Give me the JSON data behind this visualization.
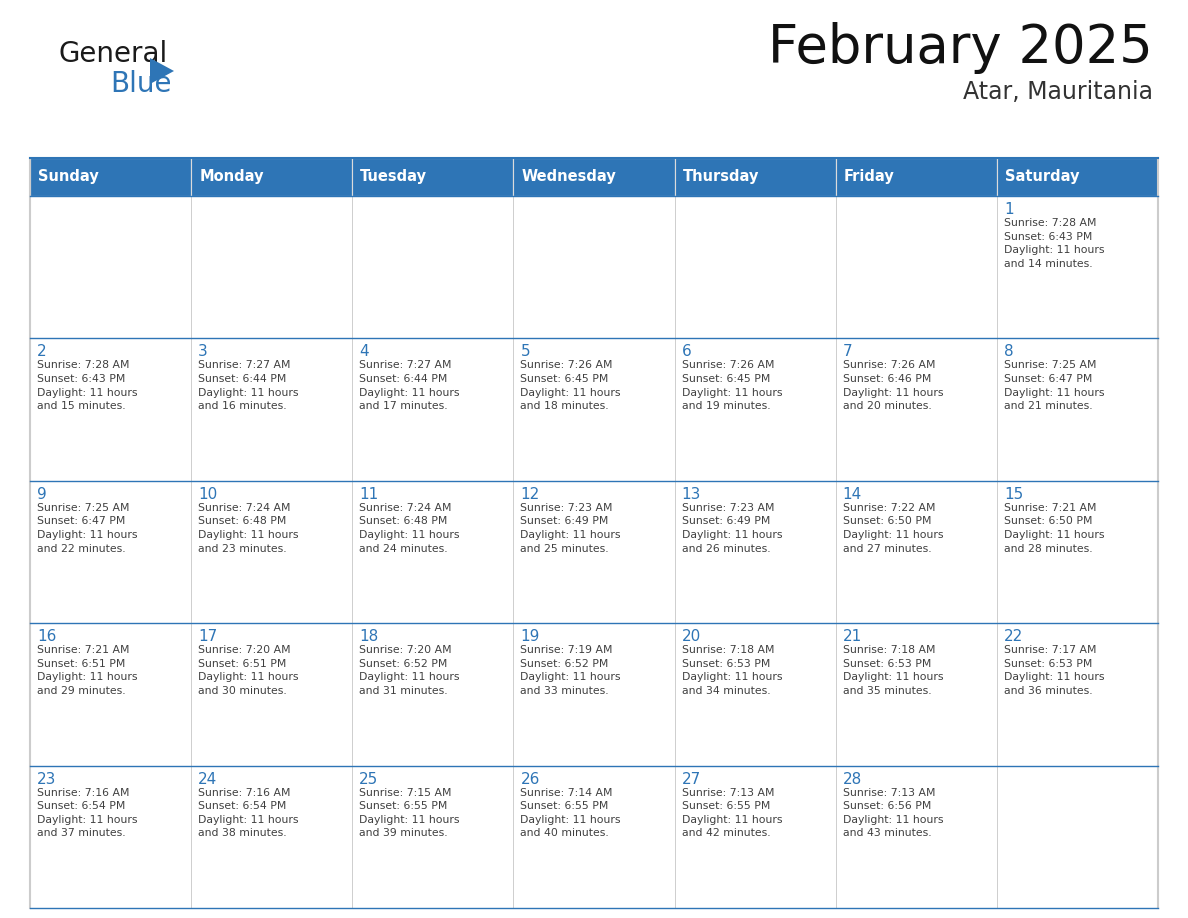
{
  "title": "February 2025",
  "subtitle": "Atar, Mauritania",
  "days_of_week": [
    "Sunday",
    "Monday",
    "Tuesday",
    "Wednesday",
    "Thursday",
    "Friday",
    "Saturday"
  ],
  "header_bg": "#2E75B6",
  "header_text": "#FFFFFF",
  "cell_border_blue": "#2E75B6",
  "cell_border_light": "#CCCCCC",
  "day_num_color": "#2E75B6",
  "info_text_color": "#404040",
  "logo_general_color": "#1a1a1a",
  "logo_blue_color": "#2E75B6",
  "fig_width": 11.88,
  "fig_height": 9.18,
  "dpi": 100,
  "weeks": [
    [
      {
        "day": null,
        "info": ""
      },
      {
        "day": null,
        "info": ""
      },
      {
        "day": null,
        "info": ""
      },
      {
        "day": null,
        "info": ""
      },
      {
        "day": null,
        "info": ""
      },
      {
        "day": null,
        "info": ""
      },
      {
        "day": 1,
        "info": "Sunrise: 7:28 AM\nSunset: 6:43 PM\nDaylight: 11 hours\nand 14 minutes."
      }
    ],
    [
      {
        "day": 2,
        "info": "Sunrise: 7:28 AM\nSunset: 6:43 PM\nDaylight: 11 hours\nand 15 minutes."
      },
      {
        "day": 3,
        "info": "Sunrise: 7:27 AM\nSunset: 6:44 PM\nDaylight: 11 hours\nand 16 minutes."
      },
      {
        "day": 4,
        "info": "Sunrise: 7:27 AM\nSunset: 6:44 PM\nDaylight: 11 hours\nand 17 minutes."
      },
      {
        "day": 5,
        "info": "Sunrise: 7:26 AM\nSunset: 6:45 PM\nDaylight: 11 hours\nand 18 minutes."
      },
      {
        "day": 6,
        "info": "Sunrise: 7:26 AM\nSunset: 6:45 PM\nDaylight: 11 hours\nand 19 minutes."
      },
      {
        "day": 7,
        "info": "Sunrise: 7:26 AM\nSunset: 6:46 PM\nDaylight: 11 hours\nand 20 minutes."
      },
      {
        "day": 8,
        "info": "Sunrise: 7:25 AM\nSunset: 6:47 PM\nDaylight: 11 hours\nand 21 minutes."
      }
    ],
    [
      {
        "day": 9,
        "info": "Sunrise: 7:25 AM\nSunset: 6:47 PM\nDaylight: 11 hours\nand 22 minutes."
      },
      {
        "day": 10,
        "info": "Sunrise: 7:24 AM\nSunset: 6:48 PM\nDaylight: 11 hours\nand 23 minutes."
      },
      {
        "day": 11,
        "info": "Sunrise: 7:24 AM\nSunset: 6:48 PM\nDaylight: 11 hours\nand 24 minutes."
      },
      {
        "day": 12,
        "info": "Sunrise: 7:23 AM\nSunset: 6:49 PM\nDaylight: 11 hours\nand 25 minutes."
      },
      {
        "day": 13,
        "info": "Sunrise: 7:23 AM\nSunset: 6:49 PM\nDaylight: 11 hours\nand 26 minutes."
      },
      {
        "day": 14,
        "info": "Sunrise: 7:22 AM\nSunset: 6:50 PM\nDaylight: 11 hours\nand 27 minutes."
      },
      {
        "day": 15,
        "info": "Sunrise: 7:21 AM\nSunset: 6:50 PM\nDaylight: 11 hours\nand 28 minutes."
      }
    ],
    [
      {
        "day": 16,
        "info": "Sunrise: 7:21 AM\nSunset: 6:51 PM\nDaylight: 11 hours\nand 29 minutes."
      },
      {
        "day": 17,
        "info": "Sunrise: 7:20 AM\nSunset: 6:51 PM\nDaylight: 11 hours\nand 30 minutes."
      },
      {
        "day": 18,
        "info": "Sunrise: 7:20 AM\nSunset: 6:52 PM\nDaylight: 11 hours\nand 31 minutes."
      },
      {
        "day": 19,
        "info": "Sunrise: 7:19 AM\nSunset: 6:52 PM\nDaylight: 11 hours\nand 33 minutes."
      },
      {
        "day": 20,
        "info": "Sunrise: 7:18 AM\nSunset: 6:53 PM\nDaylight: 11 hours\nand 34 minutes."
      },
      {
        "day": 21,
        "info": "Sunrise: 7:18 AM\nSunset: 6:53 PM\nDaylight: 11 hours\nand 35 minutes."
      },
      {
        "day": 22,
        "info": "Sunrise: 7:17 AM\nSunset: 6:53 PM\nDaylight: 11 hours\nand 36 minutes."
      }
    ],
    [
      {
        "day": 23,
        "info": "Sunrise: 7:16 AM\nSunset: 6:54 PM\nDaylight: 11 hours\nand 37 minutes."
      },
      {
        "day": 24,
        "info": "Sunrise: 7:16 AM\nSunset: 6:54 PM\nDaylight: 11 hours\nand 38 minutes."
      },
      {
        "day": 25,
        "info": "Sunrise: 7:15 AM\nSunset: 6:55 PM\nDaylight: 11 hours\nand 39 minutes."
      },
      {
        "day": 26,
        "info": "Sunrise: 7:14 AM\nSunset: 6:55 PM\nDaylight: 11 hours\nand 40 minutes."
      },
      {
        "day": 27,
        "info": "Sunrise: 7:13 AM\nSunset: 6:55 PM\nDaylight: 11 hours\nand 42 minutes."
      },
      {
        "day": 28,
        "info": "Sunrise: 7:13 AM\nSunset: 6:56 PM\nDaylight: 11 hours\nand 43 minutes."
      },
      {
        "day": null,
        "info": ""
      }
    ]
  ]
}
